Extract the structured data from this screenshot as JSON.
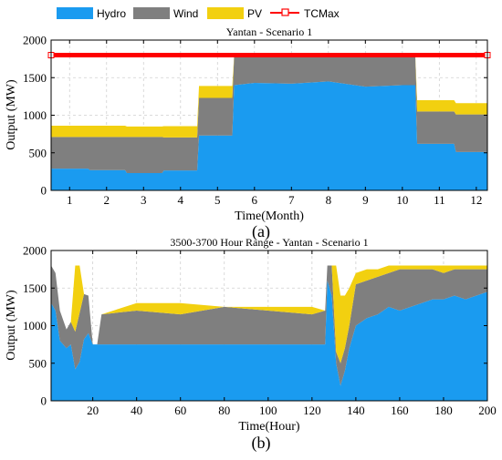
{
  "legend": {
    "items": [
      {
        "label": "Hydro",
        "color": "#1a9bf0"
      },
      {
        "label": "Wind",
        "color": "#7f7f7f"
      },
      {
        "label": "PV",
        "color": "#f2d010"
      },
      {
        "label": "TCMax",
        "color": "#ff0000"
      }
    ]
  },
  "chart_data": [
    {
      "type": "area",
      "stacked": true,
      "title": "Yantan - Scenario 1",
      "xlabel": "Time(Month)",
      "ylabel": "Output (MW)",
      "panel_label": "(a)",
      "xlim": [
        0.5,
        12.3
      ],
      "ylim": [
        0,
        2000
      ],
      "xticks": [
        1,
        2,
        3,
        4,
        5,
        6,
        7,
        8,
        9,
        10,
        11,
        12
      ],
      "yticks": [
        0,
        500,
        1000,
        1500,
        2000
      ],
      "grid": true,
      "tcmax": 1800,
      "series": [
        {
          "name": "Hydro",
          "color": "#1a9bf0",
          "x": [
            0.5,
            1.5,
            1.55,
            2.5,
            2.55,
            3.5,
            3.55,
            4.45,
            4.5,
            5.4,
            5.45,
            6.0,
            7.0,
            8.0,
            9.0,
            10.0,
            10.35,
            10.4,
            11.4,
            11.45,
            12.3
          ],
          "values": [
            290,
            290,
            270,
            270,
            230,
            230,
            265,
            265,
            730,
            730,
            1400,
            1430,
            1420,
            1450,
            1380,
            1400,
            1400,
            620,
            620,
            510,
            510
          ]
        },
        {
          "name": "Wind",
          "color": "#7f7f7f",
          "x": [
            0.5,
            1.5,
            1.55,
            2.5,
            2.55,
            3.5,
            3.55,
            4.45,
            4.5,
            5.4,
            5.45,
            6.0,
            7.0,
            8.0,
            9.0,
            10.0,
            10.35,
            10.4,
            11.4,
            11.45,
            12.3
          ],
          "values": [
            420,
            420,
            440,
            440,
            480,
            480,
            440,
            440,
            500,
            500,
            380,
            350,
            360,
            330,
            400,
            380,
            380,
            430,
            430,
            500,
            500
          ]
        },
        {
          "name": "PV",
          "color": "#f2d010",
          "x": [
            0.5,
            1.5,
            1.55,
            2.5,
            2.55,
            3.5,
            3.55,
            4.45,
            4.5,
            5.4,
            5.45,
            6.0,
            7.0,
            8.0,
            9.0,
            10.0,
            10.35,
            10.4,
            11.4,
            11.45,
            12.3
          ],
          "values": [
            150,
            150,
            150,
            150,
            140,
            140,
            150,
            150,
            160,
            160,
            20,
            20,
            20,
            20,
            20,
            20,
            20,
            150,
            150,
            150,
            150
          ]
        }
      ]
    },
    {
      "type": "area",
      "stacked": true,
      "title": "3500-3700 Hour Range - Yantan - Scenario 1",
      "xlabel": "Time(Hour)",
      "ylabel": "Output (MW)",
      "panel_label": "(b)",
      "xlim": [
        1,
        200
      ],
      "ylim": [
        0,
        2000
      ],
      "xticks": [
        20,
        40,
        60,
        80,
        100,
        120,
        140,
        160,
        180,
        200
      ],
      "yticks": [
        0,
        500,
        1000,
        1500,
        2000
      ],
      "grid": true,
      "series": [
        {
          "name": "Hydro",
          "color": "#1a9bf0",
          "x": [
            1,
            3,
            5,
            8,
            10,
            12,
            14,
            16,
            18,
            20,
            22,
            24,
            40,
            60,
            80,
            100,
            120,
            126,
            127,
            129,
            131,
            133,
            135,
            137,
            140,
            145,
            150,
            155,
            160,
            165,
            170,
            175,
            180,
            185,
            190,
            195,
            200
          ],
          "values": [
            1300,
            1200,
            800,
            700,
            750,
            420,
            520,
            820,
            900,
            750,
            750,
            750,
            750,
            750,
            750,
            750,
            750,
            750,
            1600,
            1400,
            500,
            200,
            400,
            700,
            1000,
            1100,
            1150,
            1250,
            1200,
            1250,
            1300,
            1350,
            1350,
            1400,
            1350,
            1400,
            1450
          ]
        },
        {
          "name": "Wind",
          "color": "#7f7f7f",
          "x": [
            1,
            3,
            5,
            8,
            10,
            12,
            14,
            16,
            18,
            20,
            22,
            24,
            40,
            60,
            80,
            100,
            120,
            126,
            127,
            129,
            131,
            133,
            135,
            137,
            140,
            145,
            150,
            155,
            160,
            165,
            170,
            175,
            180,
            185,
            190,
            195,
            200
          ],
          "values": [
            500,
            500,
            400,
            250,
            300,
            500,
            650,
            600,
            500,
            0,
            0,
            400,
            450,
            400,
            500,
            450,
            400,
            450,
            200,
            400,
            150,
            300,
            300,
            300,
            550,
            500,
            500,
            450,
            550,
            500,
            450,
            400,
            350,
            350,
            400,
            350,
            300
          ]
        },
        {
          "name": "PV",
          "color": "#f2d010",
          "x": [
            1,
            3,
            5,
            8,
            10,
            12,
            14,
            16,
            18,
            20,
            22,
            24,
            40,
            60,
            80,
            100,
            120,
            126,
            127,
            129,
            131,
            133,
            135,
            137,
            140,
            145,
            150,
            155,
            160,
            165,
            170,
            175,
            180,
            185,
            190,
            195,
            200
          ],
          "values": [
            0,
            0,
            0,
            0,
            0,
            880,
            630,
            0,
            0,
            0,
            0,
            0,
            100,
            150,
            0,
            50,
            100,
            0,
            0,
            0,
            1150,
            900,
            700,
            500,
            150,
            150,
            100,
            100,
            50,
            50,
            50,
            50,
            100,
            50,
            50,
            50,
            50
          ]
        }
      ]
    }
  ]
}
